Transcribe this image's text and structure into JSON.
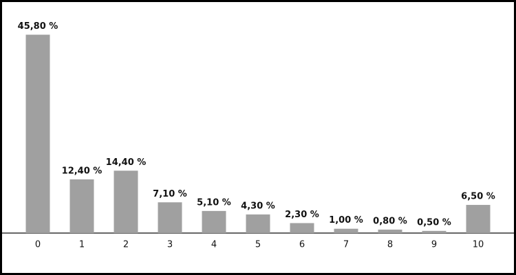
{
  "chart_data": {
    "type": "bar",
    "categories": [
      "0",
      "1",
      "2",
      "3",
      "4",
      "5",
      "6",
      "7",
      "8",
      "9",
      "10"
    ],
    "values": [
      45.8,
      12.4,
      14.4,
      7.1,
      5.1,
      4.3,
      2.3,
      1.0,
      0.8,
      0.5,
      6.5
    ],
    "value_labels": [
      "45,80 %",
      "12,40 %",
      "14,40 %",
      "7,10 %",
      "5,10 %",
      "4,30 %",
      "2,30 %",
      "1,00 %",
      "0,80 %",
      "0,50 %",
      "6,50 %"
    ],
    "color": "#a0a0a0"
  }
}
